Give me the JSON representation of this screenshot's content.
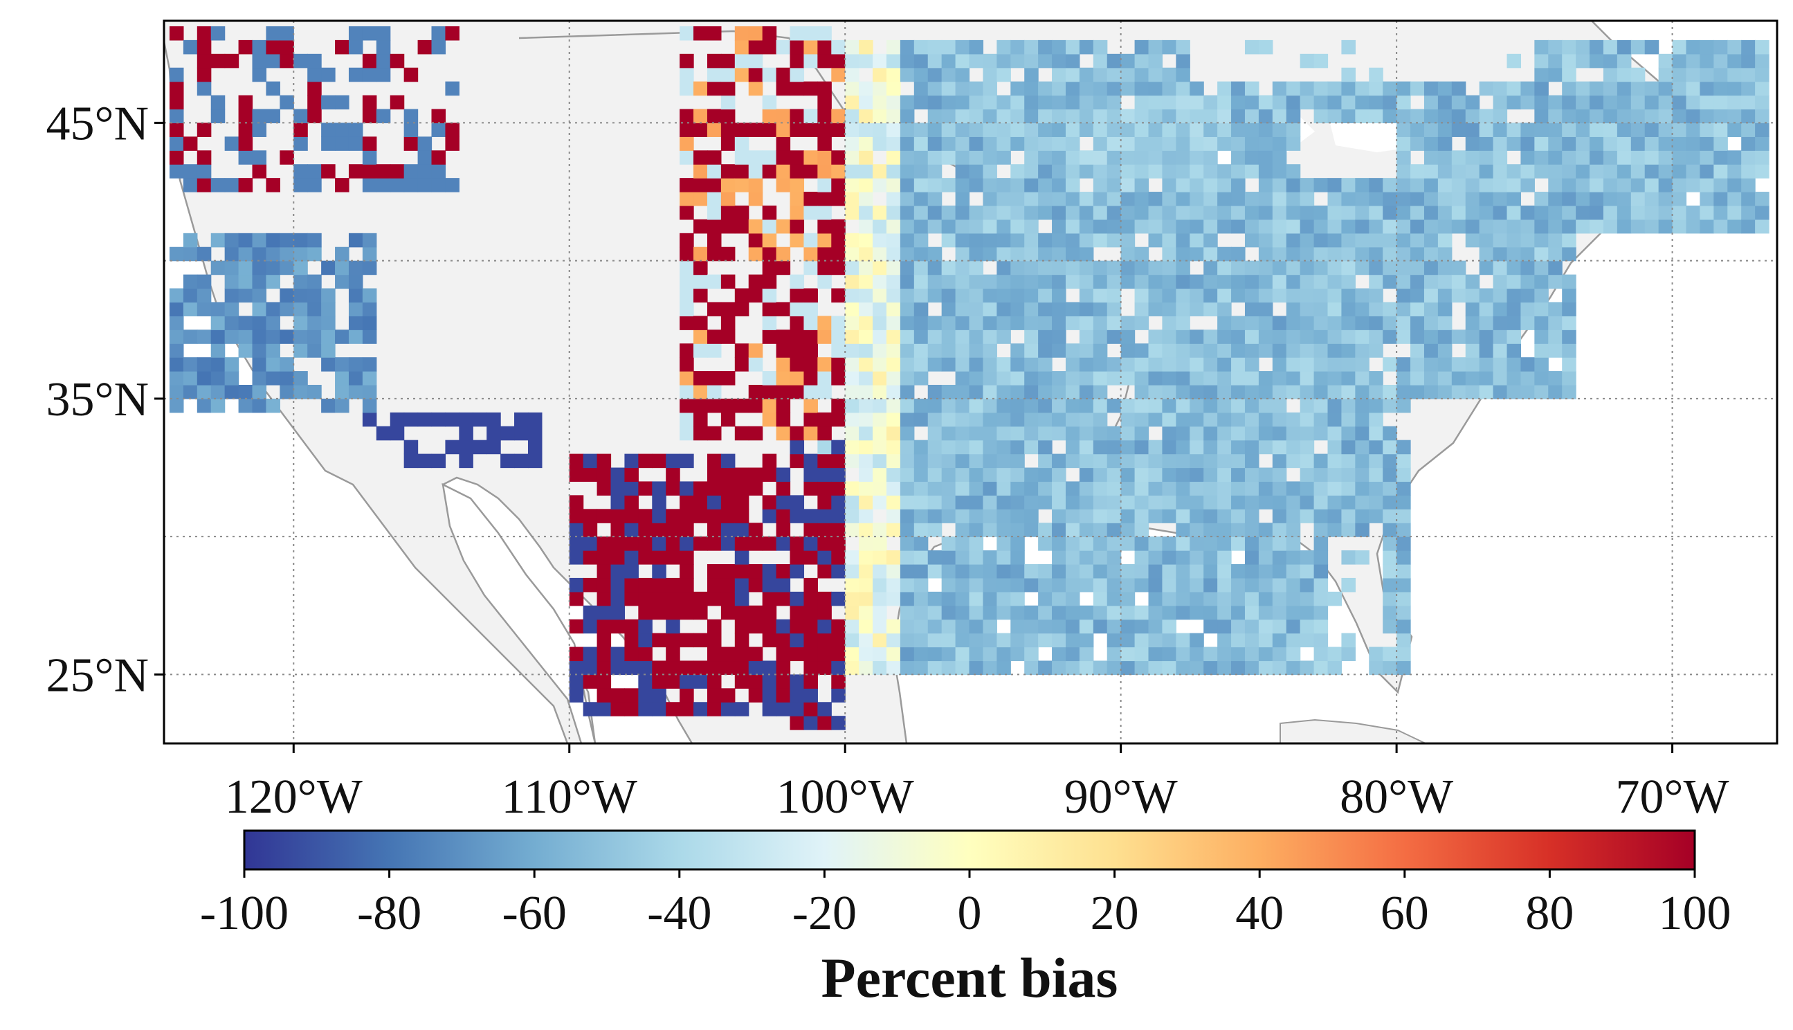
{
  "map": {
    "lon_range": [
      -124.7,
      -66.2
    ],
    "lat_range": [
      22.5,
      48.7
    ],
    "x_ticks": [
      {
        "value": -120,
        "label": "120°W"
      },
      {
        "value": -110,
        "label": "110°W"
      },
      {
        "value": -100,
        "label": "100°W"
      },
      {
        "value": -90,
        "label": "90°W"
      },
      {
        "value": -80,
        "label": "80°W"
      },
      {
        "value": -70,
        "label": "70°W"
      }
    ],
    "y_ticks": [
      {
        "value": 45,
        "label": "45°N"
      },
      {
        "value": 35,
        "label": "35°N"
      },
      {
        "value": 25,
        "label": "25°N"
      }
    ],
    "grid_lon": [
      -120,
      -110,
      -100,
      -90,
      -80,
      -70
    ],
    "grid_lat": [
      45,
      40,
      35,
      30,
      25
    ],
    "grid": "dotted",
    "land_color": "#f2f2f2",
    "water_color": "#ffffff",
    "coastline_color": "#999999"
  },
  "colorbar": {
    "label": "Percent bias",
    "min": -100,
    "max": 100,
    "ticks": [
      "-100",
      "-80",
      "-60",
      "-40",
      "-20",
      "0",
      "20",
      "40",
      "60",
      "80",
      "100"
    ],
    "colormap": "RdYlBu_r",
    "colors": [
      "#313695",
      "#4575b4",
      "#74add1",
      "#abd9e9",
      "#e0f3f8",
      "#ffffbf",
      "#fee090",
      "#fdae61",
      "#f46d43",
      "#d73027",
      "#a50026"
    ]
  }
}
